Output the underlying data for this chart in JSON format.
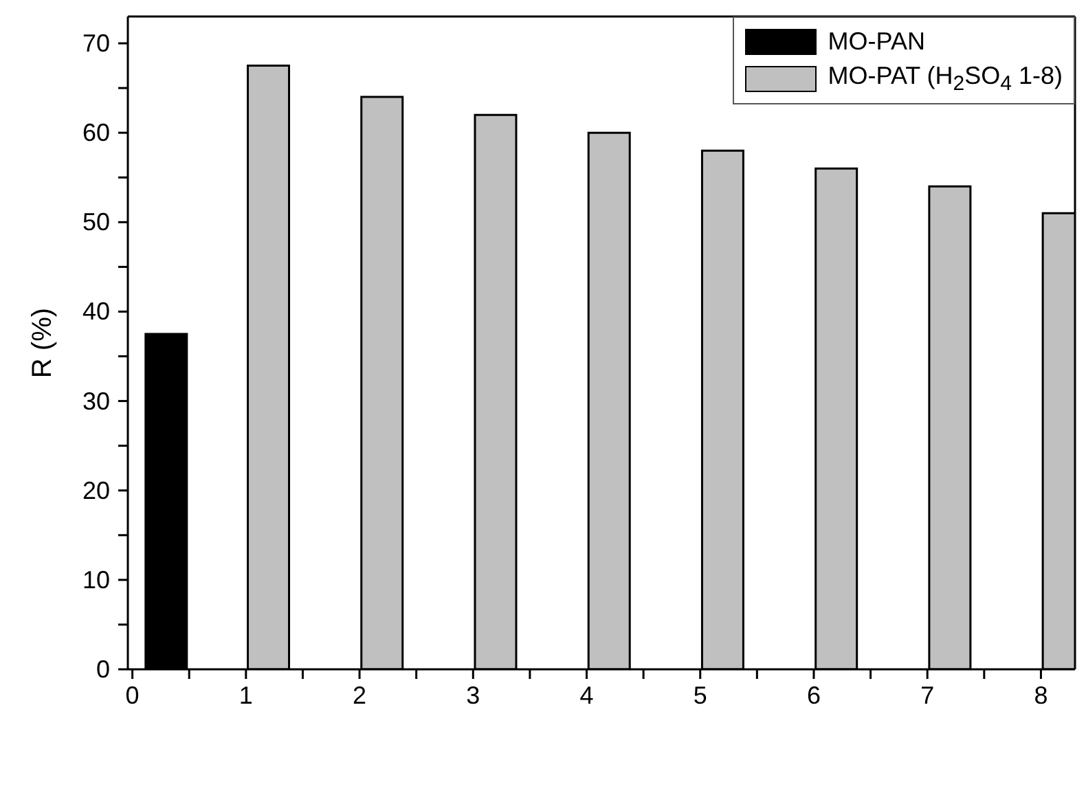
{
  "chart_data": {
    "type": "bar",
    "ylabel": "R (%)",
    "series": [
      {
        "name": "MO-PAN",
        "color": "#000000",
        "x": [
          0.3
        ],
        "values": [
          37.5
        ]
      },
      {
        "name": "MO-PAT (H$_{2}$SO$_{4}$ 1-8)",
        "color": "#c0c0c0",
        "x": [
          1.2,
          2.2,
          3.2,
          4.2,
          5.2,
          6.2,
          7.2,
          8.2
        ],
        "values": [
          67.5,
          64,
          62,
          60,
          58,
          56,
          54,
          51
        ]
      }
    ],
    "xlim": [
      -0.04,
      8.3
    ],
    "ylim": [
      0,
      73
    ],
    "xticks": [
      0,
      {
        "value": 0.5,
        "label": null
      },
      1,
      {
        "value": 1.5,
        "label": null
      },
      2,
      {
        "value": 2.5,
        "label": null
      },
      3,
      {
        "value": 3.5,
        "label": null
      },
      4,
      {
        "value": 4.5,
        "label": null
      },
      5,
      {
        "value": 5.5,
        "label": null
      },
      6,
      {
        "value": 6.5,
        "label": null
      },
      7,
      {
        "value": 7.5,
        "label": null
      },
      8
    ],
    "yticks": [
      0,
      {
        "value": 5,
        "label": null
      },
      10,
      {
        "value": 15,
        "label": null
      },
      20,
      {
        "value": 25,
        "label": null
      },
      30,
      {
        "value": 35,
        "label": null
      },
      40,
      {
        "value": 45,
        "label": null
      },
      50,
      {
        "value": 55,
        "label": null
      },
      60,
      {
        "value": 65,
        "label": null
      },
      70
    ],
    "grid": false,
    "legend": "top right"
  }
}
